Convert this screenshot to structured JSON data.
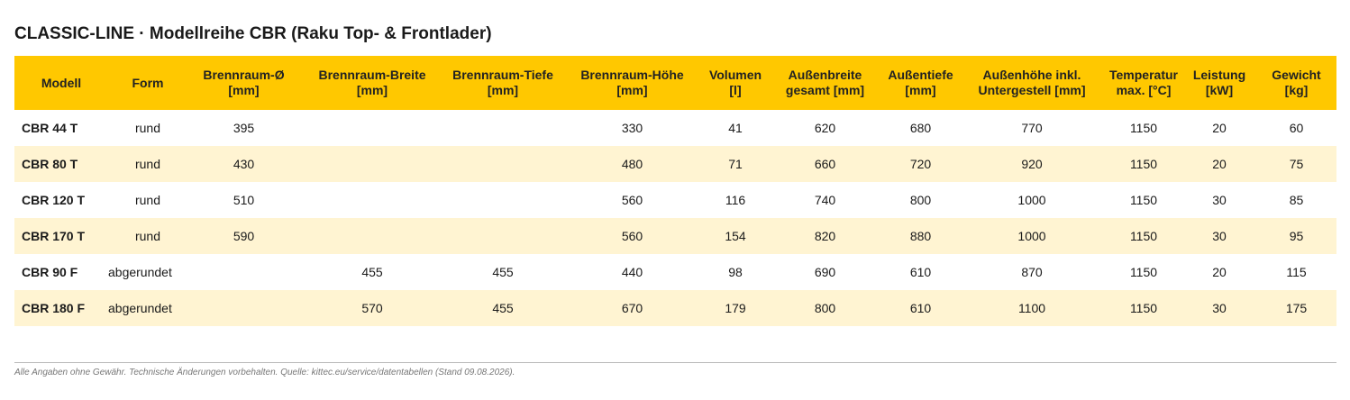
{
  "title": "CLASSIC-LINE · Modellreihe CBR (Raku Top- & Frontlader)",
  "headers": [
    [
      "Modell",
      ""
    ],
    [
      "Form",
      ""
    ],
    [
      "Brennraum-Ø",
      "[mm]"
    ],
    [
      "Brennraum-Breite",
      "[mm]"
    ],
    [
      "Brennraum-Tiefe",
      "[mm]"
    ],
    [
      "Brennraum-Höhe",
      "[mm]"
    ],
    [
      "Volumen",
      "[l]"
    ],
    [
      "Außenbreite",
      "gesamt [mm]"
    ],
    [
      "Außentiefe",
      "[mm]"
    ],
    [
      "Außenhöhe inkl.",
      "Untergestell [mm]"
    ],
    [
      "Temperatur",
      "max. [°C]"
    ],
    [
      "Leistung",
      "[kW]"
    ],
    [
      "Gewicht",
      "[kg]"
    ]
  ],
  "rows": [
    [
      "CBR 44 T",
      "rund",
      "395",
      "",
      "",
      "330",
      "41",
      "620",
      "680",
      "770",
      "1150",
      "20",
      "60"
    ],
    [
      "CBR 80 T",
      "rund",
      "430",
      "",
      "",
      "480",
      "71",
      "660",
      "720",
      "920",
      "1150",
      "20",
      "75"
    ],
    [
      "CBR 120 T",
      "rund",
      "510",
      "",
      "",
      "560",
      "116",
      "740",
      "800",
      "1000",
      "1150",
      "30",
      "85"
    ],
    [
      "CBR 170 T",
      "rund",
      "590",
      "",
      "",
      "560",
      "154",
      "820",
      "880",
      "1000",
      "1150",
      "30",
      "95"
    ],
    [
      "CBR 90 F",
      "abgerundet",
      "",
      "455",
      "455",
      "440",
      "98",
      "690",
      "610",
      "870",
      "1150",
      "20",
      "115"
    ],
    [
      "CBR 180 F",
      "abgerundet",
      "",
      "570",
      "455",
      "670",
      "179",
      "800",
      "610",
      "1100",
      "1150",
      "30",
      "175"
    ]
  ],
  "footnote": "Alle Angaben ohne Gewähr. Technische Änderungen vorbehalten. Quelle: kittec.eu/service/datentabellen (Stand 09.08.2026).",
  "colors": {
    "header_bg": "#ffc800",
    "stripe_bg": "#fff4d2"
  }
}
